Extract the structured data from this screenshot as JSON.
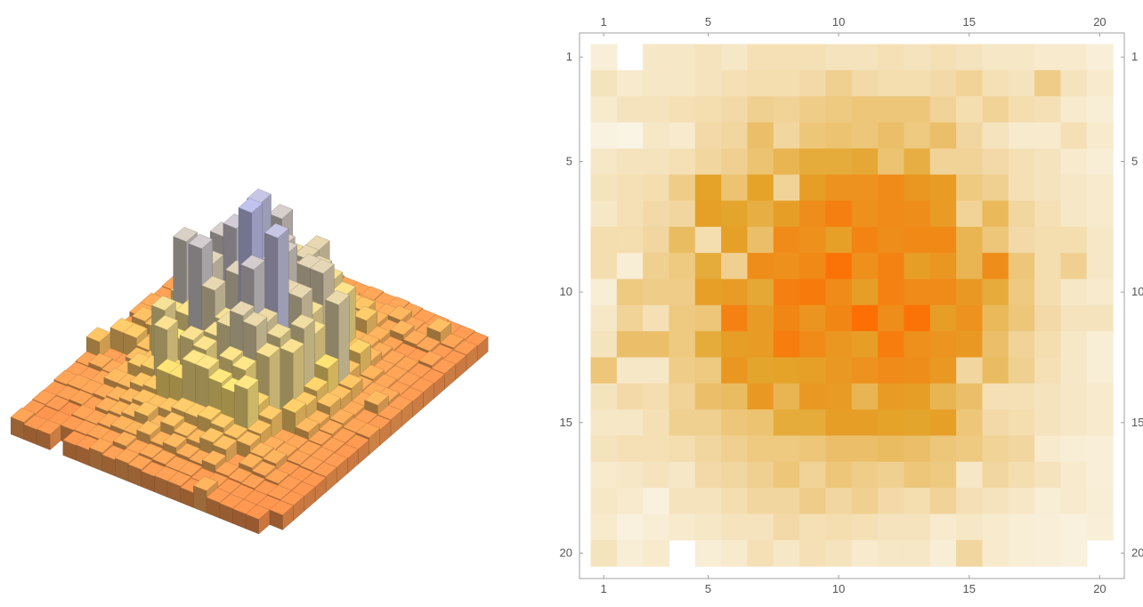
{
  "chart_data": [
    {
      "type": "bar3d",
      "rows": 20,
      "cols": 20,
      "grid_shown": false,
      "color_scheme": {
        "low": "#f4894a",
        "mid": "#ffe274",
        "high": "#b4b8f0"
      }
    },
    {
      "type": "heatmap",
      "rows": 20,
      "cols": 20,
      "xticks": [
        1,
        5,
        10,
        15,
        20
      ],
      "yticks": [
        1,
        5,
        10,
        15,
        20
      ],
      "tick_positions": [
        "top",
        "bottom",
        "left",
        "right"
      ],
      "zlim": [
        0,
        1
      ],
      "color_scheme": {
        "low": "#fbf7ec",
        "mid": "#e4a52c",
        "high": "#ff6a00"
      },
      "missing_cells": [
        [
          1,
          2
        ],
        [
          20,
          4
        ],
        [
          20,
          20
        ]
      ],
      "values": [
        [
          0.05,
          null,
          0.1,
          0.1,
          0.12,
          0.1,
          0.14,
          0.14,
          0.14,
          0.12,
          0.12,
          0.14,
          0.12,
          0.14,
          0.12,
          0.1,
          0.1,
          0.08,
          0.08,
          0.05
        ],
        [
          0.12,
          0.08,
          0.1,
          0.1,
          0.12,
          0.14,
          0.16,
          0.16,
          0.18,
          0.24,
          0.18,
          0.16,
          0.16,
          0.18,
          0.22,
          0.14,
          0.12,
          0.26,
          0.12,
          0.08
        ],
        [
          0.08,
          0.12,
          0.12,
          0.14,
          0.16,
          0.18,
          0.24,
          0.22,
          0.26,
          0.28,
          0.3,
          0.3,
          0.3,
          0.22,
          0.16,
          0.22,
          0.16,
          0.14,
          0.08,
          0.06
        ],
        [
          0.03,
          0.02,
          0.1,
          0.08,
          0.18,
          0.2,
          0.34,
          0.2,
          0.3,
          0.32,
          0.3,
          0.34,
          0.28,
          0.34,
          0.2,
          0.12,
          0.08,
          0.08,
          0.14,
          0.08
        ],
        [
          0.1,
          0.12,
          0.12,
          0.14,
          0.2,
          0.24,
          0.32,
          0.4,
          0.46,
          0.46,
          0.48,
          0.32,
          0.44,
          0.22,
          0.22,
          0.18,
          0.14,
          0.12,
          0.08,
          0.06
        ],
        [
          0.12,
          0.14,
          0.16,
          0.26,
          0.52,
          0.32,
          0.52,
          0.22,
          0.56,
          0.66,
          0.66,
          0.72,
          0.62,
          0.58,
          0.28,
          0.24,
          0.14,
          0.12,
          0.1,
          0.08
        ],
        [
          0.1,
          0.14,
          0.18,
          0.2,
          0.54,
          0.5,
          0.44,
          0.56,
          0.7,
          0.82,
          0.68,
          0.72,
          0.7,
          0.58,
          0.22,
          0.38,
          0.2,
          0.14,
          0.1,
          0.08
        ],
        [
          0.16,
          0.16,
          0.2,
          0.36,
          0.16,
          0.54,
          0.34,
          0.72,
          0.68,
          0.54,
          0.78,
          0.7,
          0.74,
          0.74,
          0.4,
          0.3,
          0.18,
          0.16,
          0.16,
          0.1
        ],
        [
          0.16,
          0.06,
          0.24,
          0.28,
          0.46,
          0.24,
          0.7,
          0.68,
          0.74,
          0.92,
          0.68,
          0.8,
          0.56,
          0.62,
          0.4,
          0.7,
          0.3,
          0.16,
          0.24,
          0.1
        ],
        [
          0.06,
          0.28,
          0.26,
          0.26,
          0.54,
          0.58,
          0.48,
          0.82,
          0.86,
          0.72,
          0.56,
          0.8,
          0.72,
          0.72,
          0.6,
          0.46,
          0.28,
          0.16,
          0.1,
          0.08
        ],
        [
          0.1,
          0.22,
          0.14,
          0.28,
          0.3,
          0.8,
          0.58,
          0.76,
          0.64,
          0.76,
          0.96,
          0.7,
          0.92,
          0.56,
          0.66,
          0.38,
          0.3,
          0.18,
          0.12,
          0.12
        ],
        [
          0.12,
          0.34,
          0.34,
          0.28,
          0.46,
          0.56,
          0.58,
          0.84,
          0.72,
          0.62,
          0.56,
          0.84,
          0.68,
          0.64,
          0.6,
          0.34,
          0.22,
          0.16,
          0.1,
          0.06
        ],
        [
          0.3,
          0.1,
          0.1,
          0.26,
          0.28,
          0.62,
          0.5,
          0.52,
          0.54,
          0.6,
          0.66,
          0.72,
          0.7,
          0.6,
          0.2,
          0.36,
          0.24,
          0.14,
          0.1,
          0.06
        ],
        [
          0.12,
          0.18,
          0.16,
          0.22,
          0.34,
          0.36,
          0.6,
          0.4,
          0.6,
          0.58,
          0.4,
          0.58,
          0.56,
          0.4,
          0.34,
          0.14,
          0.14,
          0.12,
          0.1,
          0.08
        ],
        [
          0.1,
          0.1,
          0.14,
          0.24,
          0.24,
          0.3,
          0.32,
          0.46,
          0.46,
          0.56,
          0.56,
          0.52,
          0.5,
          0.54,
          0.3,
          0.18,
          0.16,
          0.12,
          0.1,
          0.08
        ],
        [
          0.12,
          0.14,
          0.14,
          0.16,
          0.2,
          0.24,
          0.28,
          0.28,
          0.3,
          0.34,
          0.34,
          0.36,
          0.34,
          0.3,
          0.28,
          0.22,
          0.2,
          0.08,
          0.06,
          0.05
        ],
        [
          0.08,
          0.1,
          0.12,
          0.1,
          0.18,
          0.2,
          0.24,
          0.3,
          0.22,
          0.3,
          0.26,
          0.24,
          0.3,
          0.28,
          0.1,
          0.2,
          0.16,
          0.12,
          0.08,
          0.05
        ],
        [
          0.1,
          0.08,
          0.04,
          0.12,
          0.12,
          0.16,
          0.2,
          0.2,
          0.26,
          0.2,
          0.24,
          0.18,
          0.16,
          0.22,
          0.14,
          0.12,
          0.1,
          0.06,
          0.08,
          0.06
        ],
        [
          0.08,
          0.04,
          0.06,
          0.08,
          0.1,
          0.12,
          0.12,
          0.18,
          0.14,
          0.16,
          0.14,
          0.12,
          0.12,
          0.08,
          0.1,
          0.08,
          0.06,
          0.05,
          0.04,
          0.05
        ],
        [
          0.12,
          0.06,
          0.08,
          null,
          0.06,
          0.08,
          0.14,
          0.1,
          0.14,
          0.12,
          0.08,
          0.1,
          0.1,
          0.06,
          0.2,
          0.08,
          0.06,
          0.05,
          0.04,
          null
        ]
      ]
    }
  ]
}
